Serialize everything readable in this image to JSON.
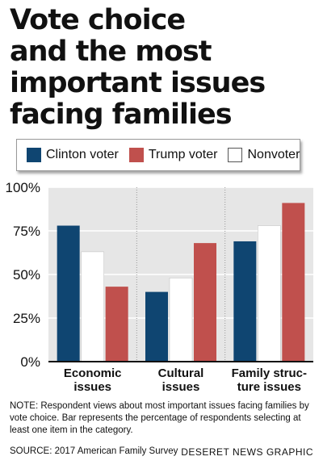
{
  "title_lines": [
    "Vote choice",
    "and the most",
    "important issues",
    "facing families"
  ],
  "colors": {
    "clinton": "#0f4571",
    "trump": "#c0504d",
    "nonvoter": "#ffffff",
    "gridline": "#999999",
    "panel": "#e6e6e6"
  },
  "chart_data": {
    "type": "bar",
    "categories": [
      "Economic issues",
      "Cultural issues",
      "Family structure issues"
    ],
    "category_label_lines": [
      [
        "Economic",
        "issues"
      ],
      [
        "Cultural",
        "issues"
      ],
      [
        "Family struc-",
        "ture issues"
      ]
    ],
    "series": [
      {
        "name": "Clinton voter",
        "values": [
          78,
          40,
          69
        ],
        "color": "#0f4571"
      },
      {
        "name": "Nonvoter",
        "values": [
          63,
          48,
          78
        ],
        "color": "#ffffff"
      },
      {
        "name": "Trump voter",
        "values": [
          43,
          68,
          91
        ],
        "color": "#c0504d"
      }
    ],
    "legend": [
      {
        "name": "Clinton voter",
        "color": "#0f4571"
      },
      {
        "name": "Trump voter",
        "color": "#c0504d"
      },
      {
        "name": "Nonvoter",
        "color": "#ffffff"
      }
    ],
    "yticks": [
      "0%",
      "25%",
      "50%",
      "75%",
      "100%"
    ],
    "ytick_values": [
      0,
      25,
      50,
      75,
      100
    ],
    "ylim": [
      0,
      100
    ],
    "legend_position": "top",
    "grid": true
  },
  "note": "NOTE: Respondent views about most important issues facing families by vote choice. Bar represents the percentage of respondents selecting at least one item in the category.",
  "source": "SOURCE: 2017 American Family Survey",
  "credit": "DESERET NEWS GRAPHIC"
}
